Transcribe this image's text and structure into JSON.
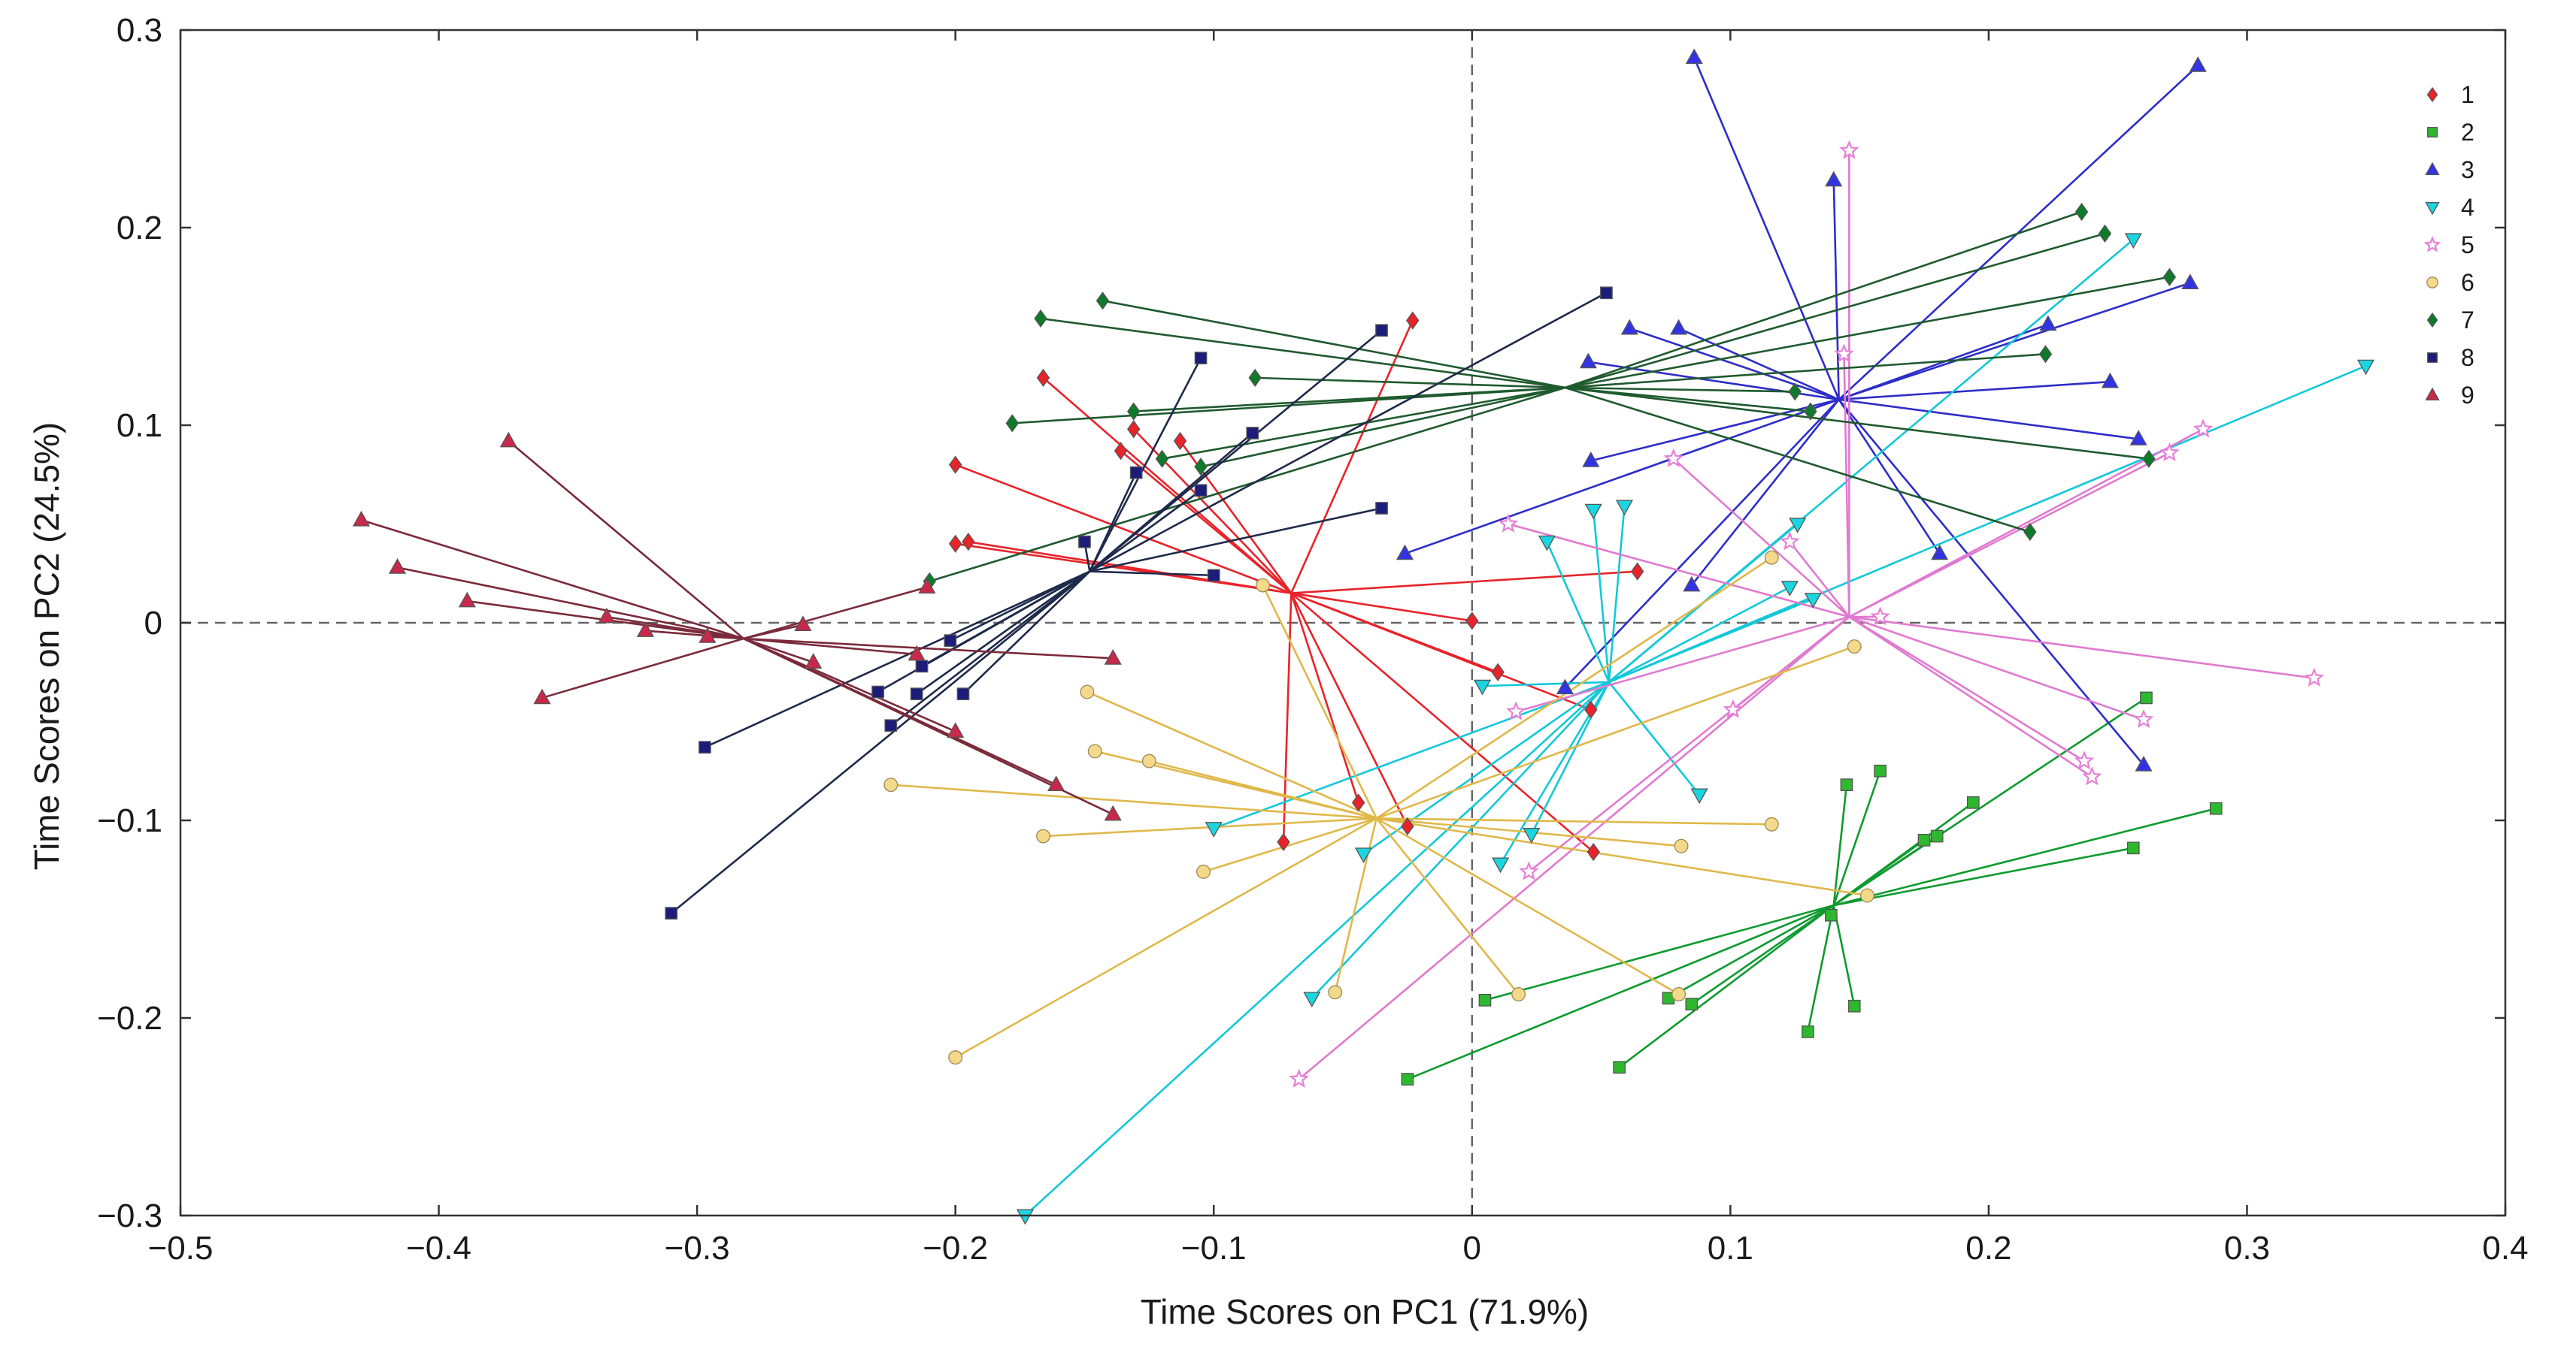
{
  "chart_data": {
    "type": "scatter",
    "title": "",
    "xlabel": "Time Scores on PC1 (71.9%)",
    "ylabel": "Time Scores on PC2 (24.5%)",
    "xlim": [
      -0.5,
      0.4
    ],
    "ylim": [
      -0.3,
      0.3
    ],
    "xticks": [
      -0.5,
      -0.4,
      -0.3,
      -0.2,
      -0.1,
      0,
      0.1,
      0.2,
      0.3,
      0.4
    ],
    "xtick_labels": [
      "−0.5",
      "−0.4",
      "−0.3",
      "−0.2",
      "−0.1",
      "0",
      "0.1",
      "0.2",
      "0.3",
      "0.4"
    ],
    "yticks": [
      0.3,
      0.2,
      0.1,
      0,
      -0.1,
      -0.2,
      -0.3
    ],
    "ytick_labels": [
      "0.3",
      "0.2",
      "0.1",
      "0",
      "−0.1",
      "−0.2",
      "−0.3"
    ],
    "reference_lines": {
      "x": 0,
      "y": 0,
      "style": "dashed"
    },
    "grid": false,
    "legend_position": "top-right",
    "star_plot": true,
    "series": [
      {
        "name": "1",
        "marker": "diamond",
        "color": "#e8232a",
        "line_color": "#e8232a",
        "center": [
          -0.07,
          0.015
        ],
        "points": [
          [
            -0.023,
            0.153
          ],
          [
            -0.166,
            0.124
          ],
          [
            -0.131,
            0.098
          ],
          [
            -0.113,
            0.092
          ],
          [
            -0.136,
            0.087
          ],
          [
            -0.2,
            0.08
          ],
          [
            -0.2,
            0.04
          ],
          [
            -0.195,
            0.041
          ],
          [
            0.064,
            0.026
          ],
          [
            0,
            0.001
          ],
          [
            0.01,
            -0.025
          ],
          [
            0.046,
            -0.044
          ],
          [
            -0.044,
            -0.091
          ],
          [
            -0.025,
            -0.103
          ],
          [
            -0.073,
            -0.111
          ],
          [
            0.047,
            -0.116
          ]
        ]
      },
      {
        "name": "2",
        "marker": "square",
        "color": "#2db82d",
        "line_color": "#0e9a2e",
        "center": [
          0.14,
          -0.143
        ],
        "points": [
          [
            0.261,
            -0.038
          ],
          [
            0.158,
            -0.075
          ],
          [
            0.145,
            -0.082
          ],
          [
            0.194,
            -0.091
          ],
          [
            0.288,
            -0.094
          ],
          [
            0.18,
            -0.108
          ],
          [
            0.175,
            -0.11
          ],
          [
            0.256,
            -0.114
          ],
          [
            0.139,
            -0.148
          ],
          [
            0.005,
            -0.191
          ],
          [
            0.076,
            -0.19
          ],
          [
            0.085,
            -0.193
          ],
          [
            0.148,
            -0.194
          ],
          [
            0.13,
            -0.207
          ],
          [
            0.057,
            -0.225
          ],
          [
            -0.025,
            -0.231
          ]
        ]
      },
      {
        "name": "3",
        "marker": "triangle-up",
        "color": "#3333e6",
        "line_color": "#2d2dc8",
        "center": [
          0.142,
          0.113
        ],
        "points": [
          [
            0.086,
            0.286
          ],
          [
            0.281,
            0.282
          ],
          [
            0.14,
            0.224
          ],
          [
            0.278,
            0.172
          ],
          [
            0.08,
            0.149
          ],
          [
            0.061,
            0.149
          ],
          [
            0.223,
            0.151
          ],
          [
            0.045,
            0.132
          ],
          [
            0.247,
            0.122
          ],
          [
            0.258,
            0.093
          ],
          [
            0.046,
            0.082
          ],
          [
            -0.026,
            0.035
          ],
          [
            0.181,
            0.035
          ],
          [
            0.085,
            0.019
          ],
          [
            0.036,
            -0.033
          ],
          [
            0.26,
            -0.072
          ]
        ]
      },
      {
        "name": "4",
        "marker": "triangle-down",
        "color": "#1ad6e0",
        "line_color": "#12c8d8",
        "center": [
          0.053,
          -0.03
        ],
        "points": [
          [
            0.256,
            0.194
          ],
          [
            0.346,
            0.13
          ],
          [
            0.126,
            0.05
          ],
          [
            0.047,
            0.057
          ],
          [
            0.059,
            0.059
          ],
          [
            0.029,
            0.041
          ],
          [
            0.123,
            0.018
          ],
          [
            0.132,
            0.012
          ],
          [
            0.004,
            -0.032
          ],
          [
            0.088,
            -0.087
          ],
          [
            -0.1,
            -0.104
          ],
          [
            0.023,
            -0.107
          ],
          [
            -0.042,
            -0.117
          ],
          [
            0.011,
            -0.122
          ],
          [
            -0.062,
            -0.19
          ],
          [
            -0.173,
            -0.3
          ]
        ]
      },
      {
        "name": "5",
        "marker": "star",
        "color": "#e87fd8",
        "line_color": "#e07ad0",
        "center": [
          0.146,
          0.003
        ],
        "points": [
          [
            0.146,
            0.239
          ],
          [
            0.144,
            0.136
          ],
          [
            0.283,
            0.098
          ],
          [
            0.27,
            0.086
          ],
          [
            0.078,
            0.083
          ],
          [
            0.014,
            0.05
          ],
          [
            0.123,
            0.041
          ],
          [
            0.158,
            0.003
          ],
          [
            0.326,
            -0.028
          ],
          [
            0.101,
            -0.044
          ],
          [
            0.017,
            -0.045
          ],
          [
            0.26,
            -0.049
          ],
          [
            0.237,
            -0.07
          ],
          [
            0.24,
            -0.078
          ],
          [
            0.022,
            -0.126
          ],
          [
            -0.067,
            -0.231
          ]
        ]
      },
      {
        "name": "6",
        "marker": "circle",
        "color": "#f5d98b",
        "line_color": "#e0b84a",
        "center": [
          -0.037,
          -0.099
        ],
        "points": [
          [
            0.116,
            0.033
          ],
          [
            -0.081,
            0.019
          ],
          [
            0.148,
            -0.012
          ],
          [
            -0.149,
            -0.035
          ],
          [
            -0.146,
            -0.065
          ],
          [
            -0.125,
            -0.07
          ],
          [
            -0.225,
            -0.082
          ],
          [
            0.116,
            -0.102
          ],
          [
            -0.166,
            -0.108
          ],
          [
            0.081,
            -0.113
          ],
          [
            -0.104,
            -0.126
          ],
          [
            0.153,
            -0.138
          ],
          [
            -0.053,
            -0.187
          ],
          [
            0.018,
            -0.188
          ],
          [
            0.08,
            -0.188
          ],
          [
            -0.2,
            -0.22
          ]
        ]
      },
      {
        "name": "7",
        "marker": "diamond",
        "color": "#0e7a2a",
        "line_color": "#1f5a2e",
        "center": [
          0.036,
          0.119
        ],
        "points": [
          [
            0.236,
            0.208
          ],
          [
            0.245,
            0.197
          ],
          [
            0.27,
            0.175
          ],
          [
            -0.143,
            0.163
          ],
          [
            -0.167,
            0.154
          ],
          [
            -0.084,
            0.124
          ],
          [
            0.222,
            0.136
          ],
          [
            0.125,
            0.117
          ],
          [
            0.131,
            0.107
          ],
          [
            -0.131,
            0.107
          ],
          [
            -0.178,
            0.101
          ],
          [
            -0.12,
            0.083
          ],
          [
            -0.105,
            0.079
          ],
          [
            0.262,
            0.083
          ],
          [
            0.216,
            0.046
          ],
          [
            -0.21,
            0.021
          ]
        ]
      },
      {
        "name": "8",
        "marker": "square",
        "color": "#1c1c7a",
        "line_color": "#1e2a4a",
        "center": [
          -0.148,
          0.026
        ],
        "points": [
          [
            0.052,
            0.167
          ],
          [
            -0.035,
            0.148
          ],
          [
            -0.105,
            0.134
          ],
          [
            -0.085,
            0.096
          ],
          [
            -0.13,
            0.076
          ],
          [
            -0.105,
            0.067
          ],
          [
            -0.035,
            0.058
          ],
          [
            -0.15,
            0.041
          ],
          [
            -0.1,
            0.024
          ],
          [
            -0.202,
            -0.009
          ],
          [
            -0.213,
            -0.022
          ],
          [
            -0.23,
            -0.035
          ],
          [
            -0.215,
            -0.036
          ],
          [
            -0.197,
            -0.036
          ],
          [
            -0.225,
            -0.052
          ],
          [
            -0.297,
            -0.063
          ],
          [
            -0.31,
            -0.147
          ]
        ]
      },
      {
        "name": "9",
        "marker": "triangle-up",
        "color": "#c8284a",
        "line_color": "#7a2a3a",
        "center": [
          -0.282,
          -0.008
        ],
        "points": [
          [
            -0.373,
            0.092
          ],
          [
            -0.43,
            0.052
          ],
          [
            -0.416,
            0.028
          ],
          [
            -0.389,
            0.011
          ],
          [
            -0.335,
            0.003
          ],
          [
            -0.32,
            -0.004
          ],
          [
            -0.296,
            -0.007
          ],
          [
            -0.259,
            -0.001
          ],
          [
            -0.211,
            0.018
          ],
          [
            -0.255,
            -0.02
          ],
          [
            -0.215,
            -0.016
          ],
          [
            -0.139,
            -0.018
          ],
          [
            -0.36,
            -0.038
          ],
          [
            -0.2,
            -0.055
          ],
          [
            -0.161,
            -0.082
          ],
          [
            -0.139,
            -0.097
          ]
        ]
      }
    ]
  }
}
